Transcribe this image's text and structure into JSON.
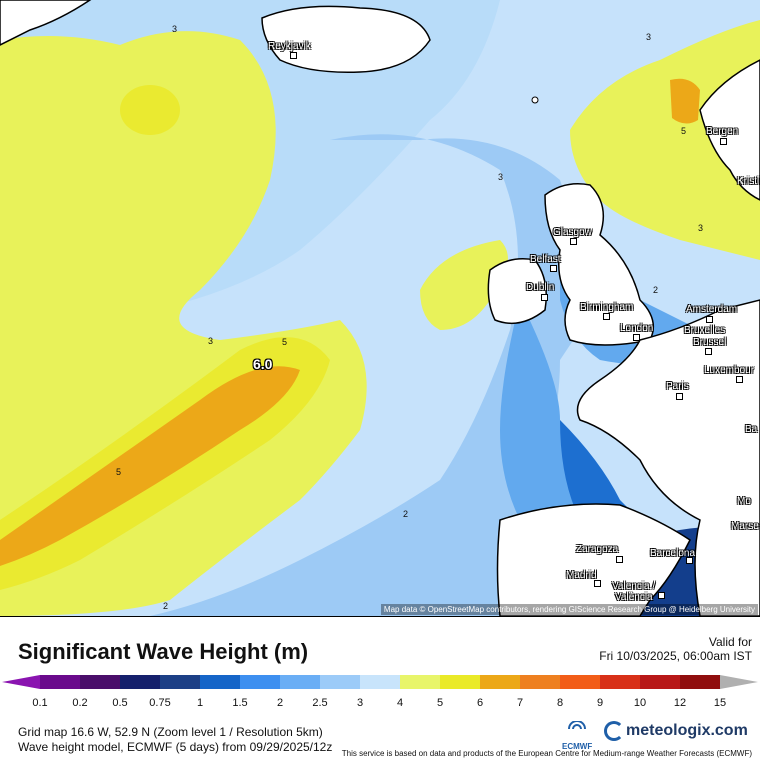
{
  "map": {
    "attribution": "Map data © OpenStreetMap contributors, rendering GIScience Research Group @ Heidelberg University",
    "peak_label": "6.0",
    "cities": [
      {
        "name": "Reykjavik"
      },
      {
        "name": "Bergen"
      },
      {
        "name": "Kristi"
      },
      {
        "name": "Glasgow"
      },
      {
        "name": "Belfast"
      },
      {
        "name": "Dublin"
      },
      {
        "name": "Birmingham"
      },
      {
        "name": "London"
      },
      {
        "name": "Amsterdam"
      },
      {
        "name": "Bruxelles"
      },
      {
        "name": "Brussel"
      },
      {
        "name": "Luxembour"
      },
      {
        "name": "Paris"
      },
      {
        "name": "Zaragoza"
      },
      {
        "name": "Barcelona"
      },
      {
        "name": "Madrid"
      },
      {
        "name": "Valencia /"
      },
      {
        "name": "València"
      },
      {
        "name": "Ba"
      },
      {
        "name": "Mo"
      },
      {
        "name": "Marse"
      }
    ],
    "contour_labels": [
      "3",
      "3",
      "3",
      "3",
      "3",
      "5",
      "5",
      "5",
      "2",
      "2",
      "2"
    ],
    "colors": {
      "land": "#ffffff",
      "sea_2": "#c6e2fb",
      "sea_1_5": "#9dcaf5",
      "sea_1": "#62a9ee",
      "sea_0_75": "#1d6fd0",
      "sea_0_5": "#133e8c",
      "wave_3": "#e8f25a",
      "wave_4": "#eaea30",
      "wave_5": "#eca818",
      "wave_6": "#f08a1e"
    }
  },
  "legend": {
    "title": "Significant Wave Height (m)",
    "valid_label": "Valid for",
    "valid_time": "Fri 10/03/2025, 06:00am IST",
    "ticks": [
      "0.1",
      "0.2",
      "0.5",
      "0.75",
      "1",
      "1.5",
      "2",
      "2.5",
      "3",
      "4",
      "5",
      "6",
      "7",
      "8",
      "9",
      "10",
      "12",
      "15"
    ],
    "colors": [
      "#6a0a8c",
      "#4a0e6a",
      "#15206c",
      "#1c3f86",
      "#1565c8",
      "#3d8ff0",
      "#6aaef5",
      "#9ccbf8",
      "#c8e4fb",
      "#e8f56a",
      "#eaea28",
      "#eca818",
      "#ee8020",
      "#f25d18",
      "#d83018",
      "#b81818",
      "#900e0e",
      "#6a0a0a",
      "#4a0808"
    ],
    "grid_info": "Grid map 16.6 W, 52.9 N (Zoom level 1 / Resolution 5km)",
    "model_info": "Wave height model, ECMWF (5 days) from 09/29/2025/12z",
    "disclaimer": "This service is based on data and products of the European Centre for Medium-range Weather Forecasts (ECMWF)",
    "ecmwf_logo_text": "ECMWF",
    "brand": "meteologix.com"
  }
}
